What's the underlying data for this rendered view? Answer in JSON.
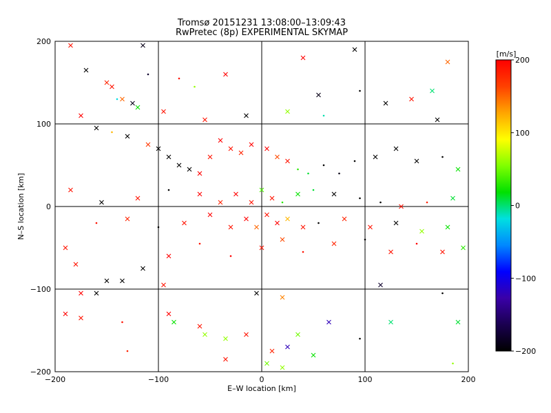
{
  "chart_data": {
    "type": "scatter",
    "title": "Tromsø 20151231 13:08:00–13:09:43",
    "subtitle": "RwPretec (8p) EXPERIMENTAL SKYMAP",
    "xlabel": "E–W location [km]",
    "ylabel": "N–S location [km]",
    "xlim": [
      -200,
      200
    ],
    "ylim": [
      -200,
      200
    ],
    "xticks": [
      -200,
      -100,
      0,
      100,
      200
    ],
    "yticks": [
      -200,
      -100,
      0,
      100,
      200
    ],
    "xtick_labels": [
      "−200",
      "−100",
      "0",
      "100",
      "200"
    ],
    "ytick_labels": [
      "−200",
      "−100",
      "0",
      "100",
      "200"
    ],
    "grid": true,
    "colorbar": {
      "label": "[m/s]",
      "min": -200,
      "max": 200,
      "ticks": [
        200,
        100,
        0,
        -100,
        -200
      ],
      "tick_labels": [
        "200",
        "100",
        "0",
        "−100",
        "−200"
      ],
      "gradient": [
        "#000000",
        "#1a0050",
        "#3a00a8",
        "#0000ff",
        "#0088ff",
        "#00e0e0",
        "#00e000",
        "#80ff00",
        "#ffff00",
        "#ffa500",
        "#ff4000",
        "#ff0000"
      ]
    },
    "marker_types": [
      "x",
      "dot"
    ],
    "series": [
      {
        "values": [
          {
            "x": -185,
            "y": 195,
            "v": 190,
            "m": "x"
          },
          {
            "x": -115,
            "y": 195,
            "v": -190,
            "m": "x"
          },
          {
            "x": -170,
            "y": 165,
            "v": -200,
            "m": "x"
          },
          {
            "x": -150,
            "y": 150,
            "v": 180,
            "m": "x"
          },
          {
            "x": -145,
            "y": 145,
            "v": 190,
            "m": "x"
          },
          {
            "x": -140,
            "y": 130,
            "v": -20,
            "m": "dot"
          },
          {
            "x": -135,
            "y": 130,
            "v": 150,
            "m": "x"
          },
          {
            "x": -125,
            "y": 125,
            "v": -190,
            "m": "x"
          },
          {
            "x": -110,
            "y": 160,
            "v": -180,
            "m": "dot"
          },
          {
            "x": -80,
            "y": 155,
            "v": 190,
            "m": "dot"
          },
          {
            "x": -65,
            "y": 145,
            "v": 60,
            "m": "dot"
          },
          {
            "x": -35,
            "y": 160,
            "v": 200,
            "m": "x"
          },
          {
            "x": 40,
            "y": 180,
            "v": 200,
            "m": "x"
          },
          {
            "x": 90,
            "y": 190,
            "v": -200,
            "m": "x"
          },
          {
            "x": 180,
            "y": 175,
            "v": 150,
            "m": "x"
          },
          {
            "x": 145,
            "y": 130,
            "v": 190,
            "m": "x"
          },
          {
            "x": 165,
            "y": 140,
            "v": 0,
            "m": "x"
          },
          {
            "x": 95,
            "y": 140,
            "v": -200,
            "m": "dot"
          },
          {
            "x": 55,
            "y": 135,
            "v": -190,
            "m": "x"
          },
          {
            "x": -175,
            "y": 110,
            "v": 200,
            "m": "x"
          },
          {
            "x": -160,
            "y": 95,
            "v": -200,
            "m": "x"
          },
          {
            "x": -145,
            "y": 90,
            "v": 120,
            "m": "dot"
          },
          {
            "x": -120,
            "y": 120,
            "v": 20,
            "m": "x"
          },
          {
            "x": -95,
            "y": 115,
            "v": 190,
            "m": "x"
          },
          {
            "x": -55,
            "y": 105,
            "v": 190,
            "m": "x"
          },
          {
            "x": -15,
            "y": 110,
            "v": -200,
            "m": "x"
          },
          {
            "x": 25,
            "y": 115,
            "v": 60,
            "m": "x"
          },
          {
            "x": 60,
            "y": 110,
            "v": -10,
            "m": "dot"
          },
          {
            "x": 120,
            "y": 125,
            "v": -200,
            "m": "x"
          },
          {
            "x": 170,
            "y": 105,
            "v": -200,
            "m": "x"
          },
          {
            "x": -130,
            "y": 85,
            "v": -200,
            "m": "x"
          },
          {
            "x": -110,
            "y": 75,
            "v": 170,
            "m": "x"
          },
          {
            "x": -100,
            "y": 70,
            "v": -200,
            "m": "x"
          },
          {
            "x": -90,
            "y": 60,
            "v": -200,
            "m": "x"
          },
          {
            "x": -80,
            "y": 50,
            "v": -200,
            "m": "x"
          },
          {
            "x": -70,
            "y": 45,
            "v": -200,
            "m": "x"
          },
          {
            "x": -60,
            "y": 40,
            "v": 200,
            "m": "x"
          },
          {
            "x": -50,
            "y": 60,
            "v": 190,
            "m": "x"
          },
          {
            "x": -40,
            "y": 80,
            "v": 200,
            "m": "x"
          },
          {
            "x": -30,
            "y": 70,
            "v": 190,
            "m": "x"
          },
          {
            "x": -20,
            "y": 65,
            "v": 180,
            "m": "x"
          },
          {
            "x": -10,
            "y": 75,
            "v": 200,
            "m": "x"
          },
          {
            "x": 5,
            "y": 70,
            "v": 200,
            "m": "x"
          },
          {
            "x": 15,
            "y": 60,
            "v": 160,
            "m": "x"
          },
          {
            "x": 25,
            "y": 55,
            "v": 190,
            "m": "x"
          },
          {
            "x": 35,
            "y": 45,
            "v": 30,
            "m": "dot"
          },
          {
            "x": 45,
            "y": 40,
            "v": 10,
            "m": "dot"
          },
          {
            "x": 60,
            "y": 50,
            "v": -200,
            "m": "dot"
          },
          {
            "x": 75,
            "y": 40,
            "v": -190,
            "m": "dot"
          },
          {
            "x": 90,
            "y": 55,
            "v": -200,
            "m": "dot"
          },
          {
            "x": 110,
            "y": 60,
            "v": -200,
            "m": "x"
          },
          {
            "x": 130,
            "y": 70,
            "v": -200,
            "m": "x"
          },
          {
            "x": 150,
            "y": 55,
            "v": -200,
            "m": "x"
          },
          {
            "x": 175,
            "y": 60,
            "v": -200,
            "m": "dot"
          },
          {
            "x": 190,
            "y": 45,
            "v": 20,
            "m": "x"
          },
          {
            "x": -185,
            "y": 20,
            "v": 190,
            "m": "x"
          },
          {
            "x": -155,
            "y": 5,
            "v": -200,
            "m": "x"
          },
          {
            "x": -120,
            "y": 10,
            "v": 190,
            "m": "x"
          },
          {
            "x": -90,
            "y": 20,
            "v": -200,
            "m": "dot"
          },
          {
            "x": -60,
            "y": 15,
            "v": 200,
            "m": "x"
          },
          {
            "x": -40,
            "y": 5,
            "v": 180,
            "m": "x"
          },
          {
            "x": -25,
            "y": 15,
            "v": 200,
            "m": "x"
          },
          {
            "x": -10,
            "y": 5,
            "v": 190,
            "m": "x"
          },
          {
            "x": 0,
            "y": 20,
            "v": 40,
            "m": "x"
          },
          {
            "x": 10,
            "y": 10,
            "v": 190,
            "m": "x"
          },
          {
            "x": 20,
            "y": 5,
            "v": 30,
            "m": "dot"
          },
          {
            "x": 35,
            "y": 15,
            "v": 20,
            "m": "x"
          },
          {
            "x": 50,
            "y": 20,
            "v": 10,
            "m": "dot"
          },
          {
            "x": 70,
            "y": 15,
            "v": -200,
            "m": "x"
          },
          {
            "x": 95,
            "y": 10,
            "v": -200,
            "m": "dot"
          },
          {
            "x": 115,
            "y": 5,
            "v": -200,
            "m": "dot"
          },
          {
            "x": 135,
            "y": 0,
            "v": 190,
            "m": "x"
          },
          {
            "x": 160,
            "y": 5,
            "v": 180,
            "m": "dot"
          },
          {
            "x": 185,
            "y": 10,
            "v": 10,
            "m": "x"
          },
          {
            "x": -160,
            "y": -20,
            "v": 190,
            "m": "dot"
          },
          {
            "x": -130,
            "y": -15,
            "v": 180,
            "m": "x"
          },
          {
            "x": -100,
            "y": -25,
            "v": -200,
            "m": "dot"
          },
          {
            "x": -75,
            "y": -20,
            "v": 190,
            "m": "x"
          },
          {
            "x": -50,
            "y": -10,
            "v": 200,
            "m": "x"
          },
          {
            "x": -30,
            "y": -25,
            "v": 190,
            "m": "x"
          },
          {
            "x": -15,
            "y": -15,
            "v": 200,
            "m": "x"
          },
          {
            "x": -5,
            "y": -25,
            "v": 150,
            "m": "x"
          },
          {
            "x": 5,
            "y": -10,
            "v": 190,
            "m": "x"
          },
          {
            "x": 15,
            "y": -20,
            "v": 200,
            "m": "x"
          },
          {
            "x": 25,
            "y": -15,
            "v": 120,
            "m": "x"
          },
          {
            "x": 40,
            "y": -25,
            "v": 190,
            "m": "x"
          },
          {
            "x": 55,
            "y": -20,
            "v": -200,
            "m": "dot"
          },
          {
            "x": 80,
            "y": -15,
            "v": 180,
            "m": "x"
          },
          {
            "x": 105,
            "y": -25,
            "v": 190,
            "m": "x"
          },
          {
            "x": 130,
            "y": -20,
            "v": -200,
            "m": "x"
          },
          {
            "x": 155,
            "y": -30,
            "v": 60,
            "m": "x"
          },
          {
            "x": 180,
            "y": -25,
            "v": 20,
            "m": "x"
          },
          {
            "x": -190,
            "y": -50,
            "v": 190,
            "m": "x"
          },
          {
            "x": -180,
            "y": -70,
            "v": 190,
            "m": "x"
          },
          {
            "x": -150,
            "y": -90,
            "v": -200,
            "m": "x"
          },
          {
            "x": -135,
            "y": -90,
            "v": -200,
            "m": "x"
          },
          {
            "x": -115,
            "y": -75,
            "v": -200,
            "m": "x"
          },
          {
            "x": -90,
            "y": -60,
            "v": 200,
            "m": "x"
          },
          {
            "x": -60,
            "y": -45,
            "v": 190,
            "m": "dot"
          },
          {
            "x": -30,
            "y": -60,
            "v": 200,
            "m": "dot"
          },
          {
            "x": 0,
            "y": -50,
            "v": 190,
            "m": "x"
          },
          {
            "x": 20,
            "y": -40,
            "v": 160,
            "m": "x"
          },
          {
            "x": 40,
            "y": -55,
            "v": 190,
            "m": "dot"
          },
          {
            "x": 70,
            "y": -45,
            "v": 180,
            "m": "x"
          },
          {
            "x": 100,
            "y": -40,
            "v": -200,
            "m": "dot"
          },
          {
            "x": 125,
            "y": -55,
            "v": 190,
            "m": "x"
          },
          {
            "x": 150,
            "y": -45,
            "v": 200,
            "m": "dot"
          },
          {
            "x": 175,
            "y": -55,
            "v": 190,
            "m": "x"
          },
          {
            "x": 195,
            "y": -50,
            "v": 30,
            "m": "x"
          },
          {
            "x": -175,
            "y": -105,
            "v": 200,
            "m": "x"
          },
          {
            "x": -160,
            "y": -105,
            "v": -200,
            "m": "x"
          },
          {
            "x": -95,
            "y": -95,
            "v": 190,
            "m": "x"
          },
          {
            "x": -5,
            "y": -105,
            "v": -200,
            "m": "x"
          },
          {
            "x": 20,
            "y": -110,
            "v": 140,
            "m": "x"
          },
          {
            "x": 115,
            "y": -95,
            "v": -180,
            "m": "x"
          },
          {
            "x": 175,
            "y": -105,
            "v": -200,
            "m": "dot"
          },
          {
            "x": -190,
            "y": -130,
            "v": 200,
            "m": "x"
          },
          {
            "x": -175,
            "y": -135,
            "v": 190,
            "m": "x"
          },
          {
            "x": -135,
            "y": -140,
            "v": 190,
            "m": "dot"
          },
          {
            "x": -90,
            "y": -130,
            "v": 200,
            "m": "x"
          },
          {
            "x": -85,
            "y": -140,
            "v": 20,
            "m": "x"
          },
          {
            "x": -60,
            "y": -145,
            "v": 190,
            "m": "x"
          },
          {
            "x": -55,
            "y": -155,
            "v": 60,
            "m": "x"
          },
          {
            "x": -35,
            "y": -160,
            "v": 60,
            "m": "x"
          },
          {
            "x": -15,
            "y": -155,
            "v": 190,
            "m": "x"
          },
          {
            "x": 10,
            "y": -175,
            "v": 180,
            "m": "x"
          },
          {
            "x": 25,
            "y": -170,
            "v": -120,
            "m": "x"
          },
          {
            "x": 35,
            "y": -155,
            "v": 50,
            "m": "x"
          },
          {
            "x": 65,
            "y": -140,
            "v": -120,
            "m": "x"
          },
          {
            "x": 95,
            "y": -160,
            "v": -200,
            "m": "dot"
          },
          {
            "x": 125,
            "y": -140,
            "v": 0,
            "m": "x"
          },
          {
            "x": 190,
            "y": -140,
            "v": 10,
            "m": "x"
          },
          {
            "x": -130,
            "y": -175,
            "v": 180,
            "m": "dot"
          },
          {
            "x": -35,
            "y": -185,
            "v": 190,
            "m": "x"
          },
          {
            "x": 5,
            "y": -190,
            "v": 50,
            "m": "x"
          },
          {
            "x": 20,
            "y": -195,
            "v": 60,
            "m": "x"
          },
          {
            "x": 50,
            "y": -180,
            "v": 20,
            "m": "x"
          },
          {
            "x": 185,
            "y": -190,
            "v": 60,
            "m": "dot"
          }
        ]
      }
    ]
  }
}
